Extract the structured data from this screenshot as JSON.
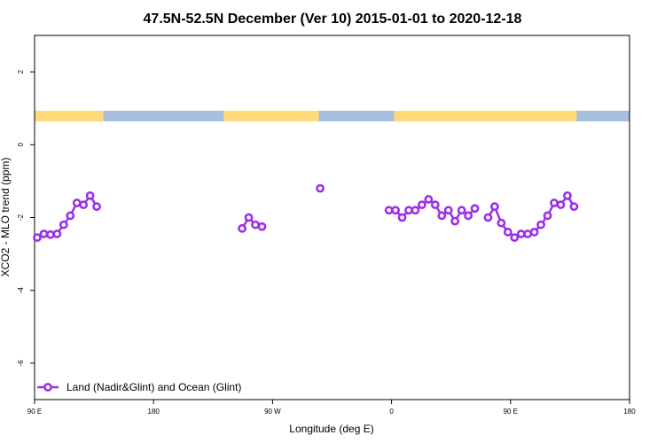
{
  "chart_data": {
    "type": "line",
    "title": "47.5N-52.5N December (Ver 10)   2015-01-01 to 2020-12-18",
    "xlabel": "Longitude (deg E)",
    "ylabel": "XCO2 - MLO trend (ppm)",
    "xlim": [
      0,
      450
    ],
    "ylim": [
      -7,
      3
    ],
    "x_ticks": [
      {
        "value": 0,
        "label": "90 E"
      },
      {
        "value": 90,
        "label": "180"
      },
      {
        "value": 180,
        "label": "90 W"
      },
      {
        "value": 270,
        "label": "0"
      },
      {
        "value": 360,
        "label": "90 E"
      },
      {
        "value": 450,
        "label": "180"
      }
    ],
    "y_ticks": [
      {
        "value": 2,
        "label": "2"
      },
      {
        "value": 0,
        "label": "0"
      },
      {
        "value": -2,
        "label": "-2"
      },
      {
        "value": -4,
        "label": "-4"
      },
      {
        "value": -6,
        "label": "-6"
      }
    ],
    "surface_strip": {
      "land_color": "#FFD97A",
      "ocean_color": "#A7BEDC",
      "land_ranges": [
        [
          0,
          52
        ],
        [
          143,
          215
        ],
        [
          272,
          410
        ]
      ]
    },
    "legend": {
      "label": "Land (Nadir&Glint) and Ocean (Glint)",
      "position": "bottom-left"
    },
    "series": [
      {
        "name": "Land (Nadir&Glint) and Ocean (Glint)",
        "color": "#9B30E8",
        "segments": [
          {
            "x": [
              2,
              7,
              12,
              17,
              22,
              27,
              32,
              37,
              42,
              47
            ],
            "y": [
              -2.55,
              -2.45,
              -2.47,
              -2.45,
              -2.2,
              -1.95,
              -1.6,
              -1.65,
              -1.4,
              -1.7
            ]
          },
          {
            "x": [
              157,
              162,
              167,
              172
            ],
            "y": [
              -2.3,
              -2.0,
              -2.2,
              -2.25
            ]
          },
          {
            "x": [
              216
            ],
            "y": [
              -1.2
            ]
          },
          {
            "x": [
              268,
              273,
              278,
              283,
              288,
              293,
              298,
              303,
              308,
              313,
              318,
              323,
              328,
              333
            ],
            "y": [
              -1.8,
              -1.8,
              -2.0,
              -1.8,
              -1.8,
              -1.65,
              -1.5,
              -1.65,
              -1.95,
              -1.8,
              -2.1,
              -1.8,
              -1.95,
              -1.75
            ]
          },
          {
            "x": [
              343,
              348,
              353,
              358,
              363,
              368,
              373,
              378,
              383,
              388,
              393,
              398,
              403,
              408
            ],
            "y": [
              -2.0,
              -1.7,
              -2.15,
              -2.4,
              -2.55,
              -2.45,
              -2.45,
              -2.4,
              -2.2,
              -1.95,
              -1.6,
              -1.65,
              -1.4,
              -1.7
            ]
          }
        ]
      }
    ]
  }
}
